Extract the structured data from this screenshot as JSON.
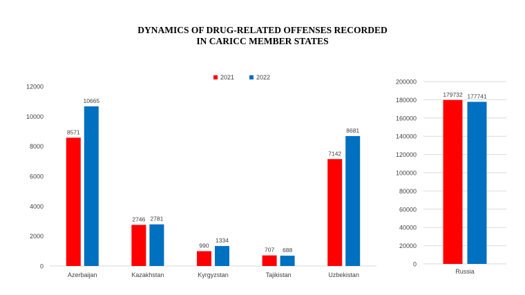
{
  "title_line1": "DYNAMICS OF DRUG-RELATED  OFFENSES RECORDED",
  "title_line2": "IN CARICC MEMBER STATES",
  "colors": {
    "series_2021": "#ff0000",
    "series_2022": "#0070c0",
    "axis": "#d9d9d9",
    "text": "#404040"
  },
  "chart_data": [
    {
      "type": "bar",
      "categories": [
        "Azerbaijan",
        "Kazakhstan",
        "Kyrgyzstan",
        "Tajikistan",
        "Uzbekistan"
      ],
      "series": [
        {
          "name": "2021",
          "values": [
            8571,
            2746,
            990,
            707,
            7142
          ]
        },
        {
          "name": "2022",
          "values": [
            10665,
            2781,
            1334,
            688,
            8681
          ]
        }
      ],
      "ylim": [
        0,
        12000
      ],
      "yticks": [
        0,
        2000,
        4000,
        6000,
        8000,
        10000,
        12000
      ],
      "legend": "top-center",
      "grid": false
    },
    {
      "type": "bar",
      "categories": [
        "Russia"
      ],
      "series": [
        {
          "name": "2021",
          "values": [
            179732
          ]
        },
        {
          "name": "2022",
          "values": [
            177741
          ]
        }
      ],
      "ylim": [
        0,
        200000
      ],
      "yticks": [
        0,
        20000,
        40000,
        60000,
        80000,
        100000,
        120000,
        140000,
        160000,
        180000,
        200000
      ],
      "legend": "none",
      "grid": true
    }
  ]
}
